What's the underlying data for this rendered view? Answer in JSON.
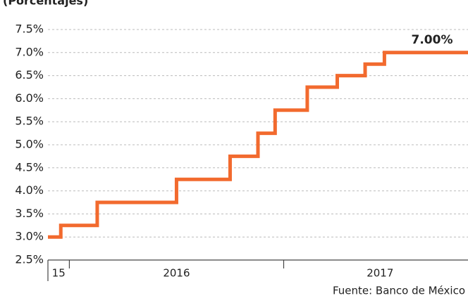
{
  "chart_data": {
    "type": "step",
    "subtitle": "(Porcentajes)",
    "annotation": "7.00%",
    "source": "Fuente: Banco de México",
    "x": [
      2015.9,
      2015.96,
      2016.13,
      2016.5,
      2016.75,
      2016.88,
      2016.96,
      2017.11,
      2017.25,
      2017.38,
      2017.47,
      2017.86
    ],
    "values": [
      3.0,
      3.25,
      3.75,
      4.25,
      4.75,
      5.25,
      5.75,
      6.25,
      6.5,
      6.75,
      7.0,
      7.0
    ],
    "color": "#f26a2e",
    "xlim": [
      2015.9,
      2017.86
    ],
    "xticks": [
      2016,
      2017
    ],
    "x_labels": [
      {
        "value": 2015.95,
        "label": "15"
      },
      {
        "value": 2016.5,
        "label": "2016"
      },
      {
        "value": 2017.45,
        "label": "2017"
      }
    ],
    "ylim": [
      2.5,
      7.5
    ],
    "yticks": [
      {
        "value": 2.5,
        "label": "2.5%"
      },
      {
        "value": 3.0,
        "label": "3.0%"
      },
      {
        "value": 3.5,
        "label": "3.5%"
      },
      {
        "value": 4.0,
        "label": "4.0%"
      },
      {
        "value": 4.5,
        "label": "4.5%"
      },
      {
        "value": 5.0,
        "label": "5.0%"
      },
      {
        "value": 5.5,
        "label": "5.5%"
      },
      {
        "value": 6.0,
        "label": "6.0%"
      },
      {
        "value": 6.5,
        "label": "6.5%"
      },
      {
        "value": 7.0,
        "label": "7.0%"
      },
      {
        "value": 7.5,
        "label": "7.5%"
      }
    ],
    "grid": true
  }
}
